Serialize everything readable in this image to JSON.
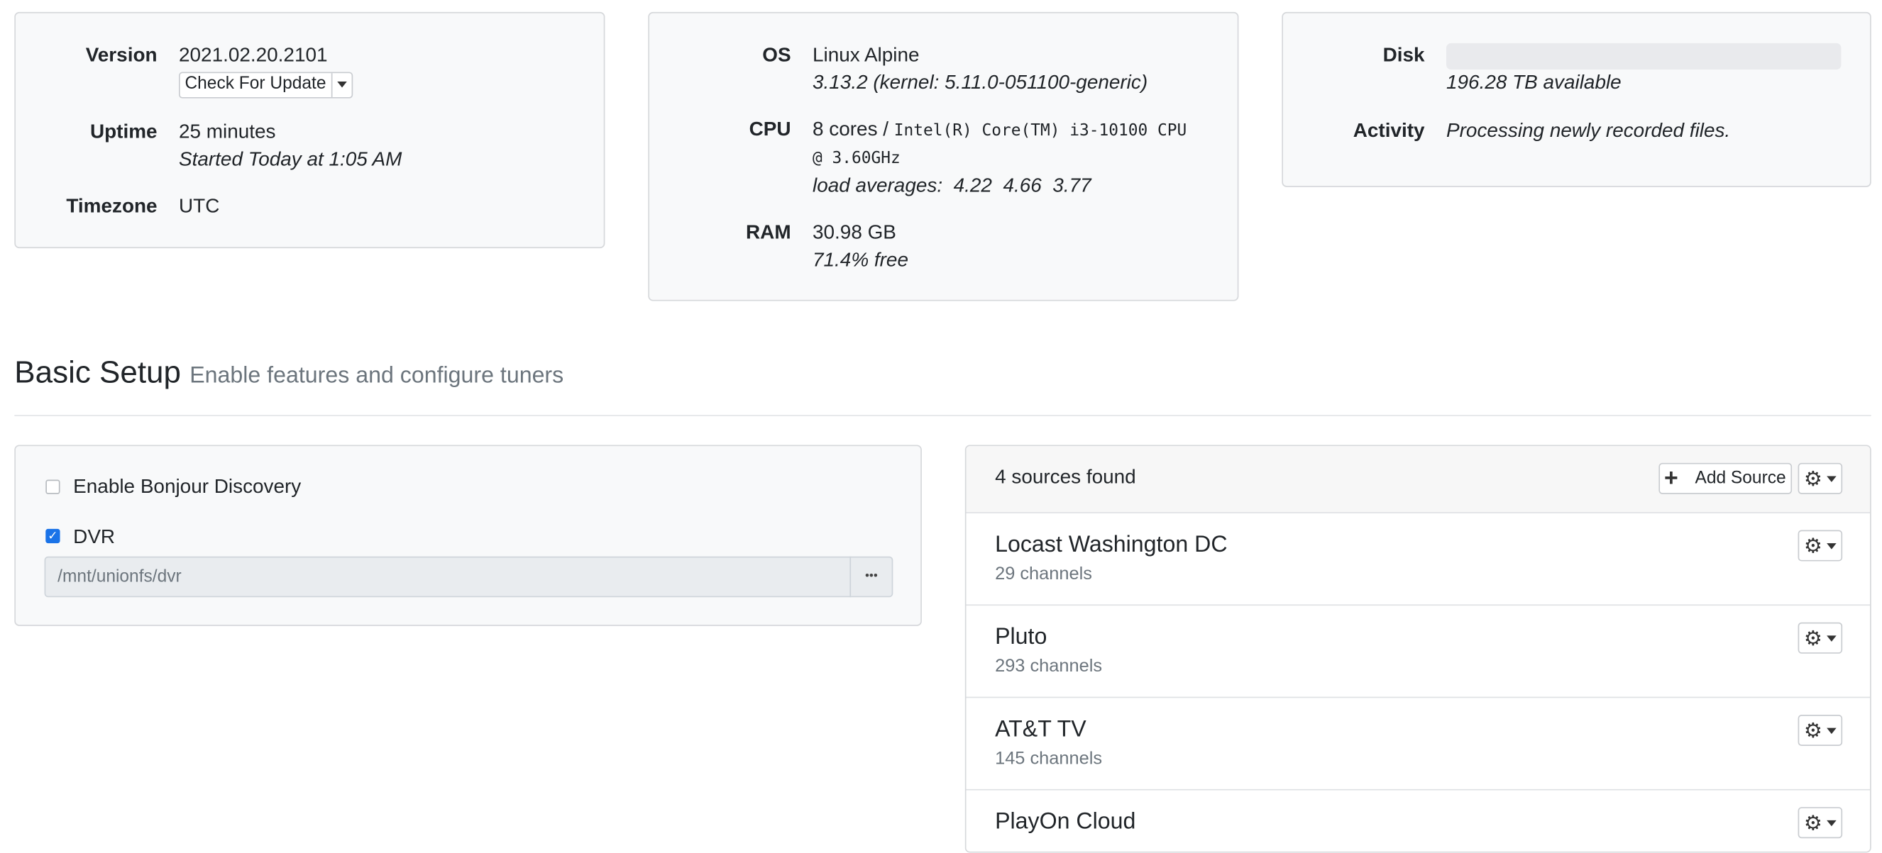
{
  "system": {
    "version_label": "Version",
    "version": "2021.02.20.2101",
    "check_update": "Check For Update",
    "uptime_label": "Uptime",
    "uptime": "25 minutes",
    "started": "Started Today at 1:05 AM",
    "timezone_label": "Timezone",
    "timezone": "UTC"
  },
  "hardware": {
    "os_label": "OS",
    "os": "Linux Alpine",
    "os_detail": "3.13.2 (kernel: 5.11.0-051100-generic)",
    "cpu_label": "CPU",
    "cpu_cores": "8 cores /",
    "cpu_model": "Intel(R) Core(TM) i3-10100 CPU",
    "cpu_speed": "@ 3.60GHz",
    "load_label": "load averages:",
    "load": [
      "4.22",
      "4.66",
      "3.77"
    ],
    "ram_label": "RAM",
    "ram": "30.98 GB",
    "ram_free": "71.4% free"
  },
  "storage": {
    "disk_label": "Disk",
    "disk_used_fraction": 0,
    "disk_available": "196.28 TB available",
    "activity_label": "Activity",
    "activity": "Processing newly recorded files."
  },
  "basic_setup": {
    "title": "Basic Setup",
    "subtitle": "Enable features and configure tuners",
    "bonjour_label": "Enable Bonjour Discovery",
    "bonjour_checked": false,
    "dvr_label": "DVR",
    "dvr_checked": true,
    "dvr_path": "/mnt/unionfs/dvr",
    "browse_label": "•••"
  },
  "sources": {
    "count_label": "4 sources found",
    "add_label": "Add Source",
    "items": [
      {
        "name": "Locast Washington DC",
        "channels": "29 channels"
      },
      {
        "name": "Pluto",
        "channels": "293 channels"
      },
      {
        "name": "AT&T TV",
        "channels": "145 channels"
      },
      {
        "name": "PlayOn Cloud",
        "channels": ""
      }
    ]
  }
}
